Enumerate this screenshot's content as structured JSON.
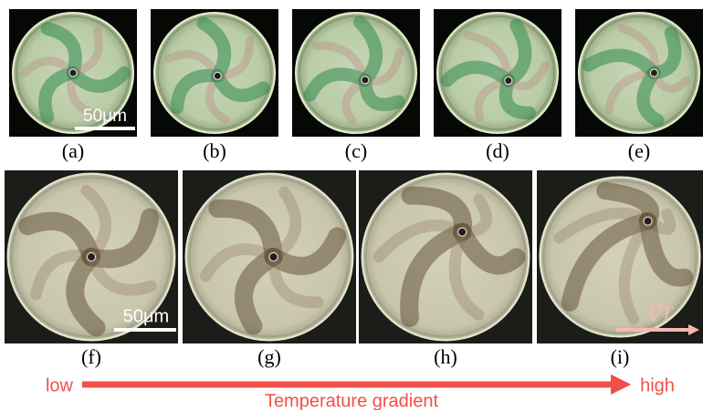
{
  "panels": [
    {
      "label": "(a)"
    },
    {
      "label": "(b)"
    },
    {
      "label": "(c)"
    },
    {
      "label": "(d)"
    },
    {
      "label": "(e)"
    },
    {
      "label": "(f)"
    },
    {
      "label": "(g)"
    },
    {
      "label": "(h)"
    },
    {
      "label": "(i)"
    }
  ],
  "scale_bars": [
    {
      "text": "50μm"
    },
    {
      "text": "50μm"
    }
  ],
  "gradient_symbol": "∇T",
  "temperature_axis": {
    "low": "low",
    "high": "high",
    "title": "Temperature gradient"
  }
}
